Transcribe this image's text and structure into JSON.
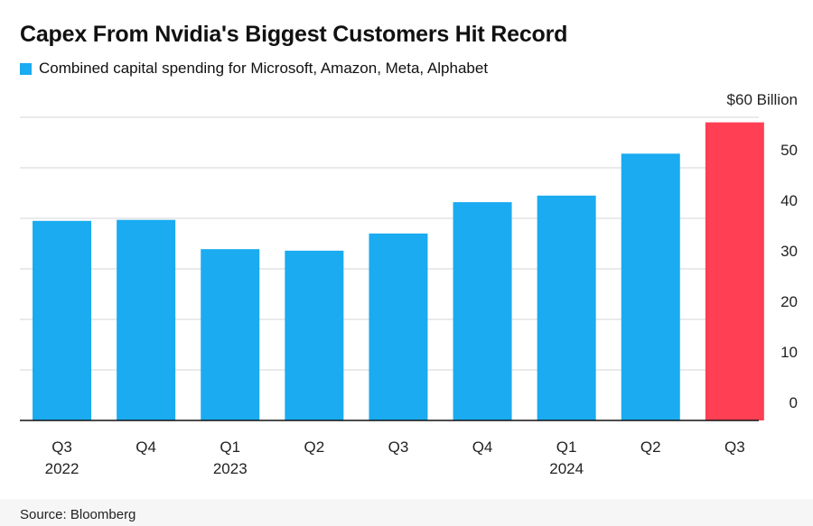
{
  "chart_data": {
    "type": "bar",
    "title": "Capex From Nvidia's Biggest Customers Hit Record",
    "legend": [
      {
        "label": "Combined capital spending for Microsoft, Amazon, Meta, Alphabet",
        "color": "#1aabf0"
      }
    ],
    "categories": [
      "Q3",
      "Q4",
      "Q1",
      "Q2",
      "Q3",
      "Q4",
      "Q1",
      "Q2",
      "Q3"
    ],
    "year_labels": [
      "2022",
      "",
      "2023",
      "",
      "",
      "",
      "2024",
      "",
      ""
    ],
    "series": [
      {
        "name": "Combined capital spending for Microsoft, Amazon, Meta, Alphabet",
        "values": [
          39.5,
          39.7,
          33.9,
          33.6,
          37.0,
          43.2,
          44.5,
          52.8,
          59.0
        ]
      }
    ],
    "bar_colors": [
      "#1aabf0",
      "#1aabf0",
      "#1aabf0",
      "#1aabf0",
      "#1aabf0",
      "#1aabf0",
      "#1aabf0",
      "#1aabf0",
      "#ff4054"
    ],
    "ylim": [
      0,
      60
    ],
    "yticks": [
      0,
      10,
      20,
      30,
      40,
      50,
      60
    ],
    "ytick_labels": [
      "0",
      "10",
      "20",
      "30",
      "40",
      "50",
      "$60 Billion"
    ],
    "axis_position": "right",
    "grid": true,
    "xlabel": "",
    "ylabel": ""
  },
  "source": "Source: Bloomberg"
}
